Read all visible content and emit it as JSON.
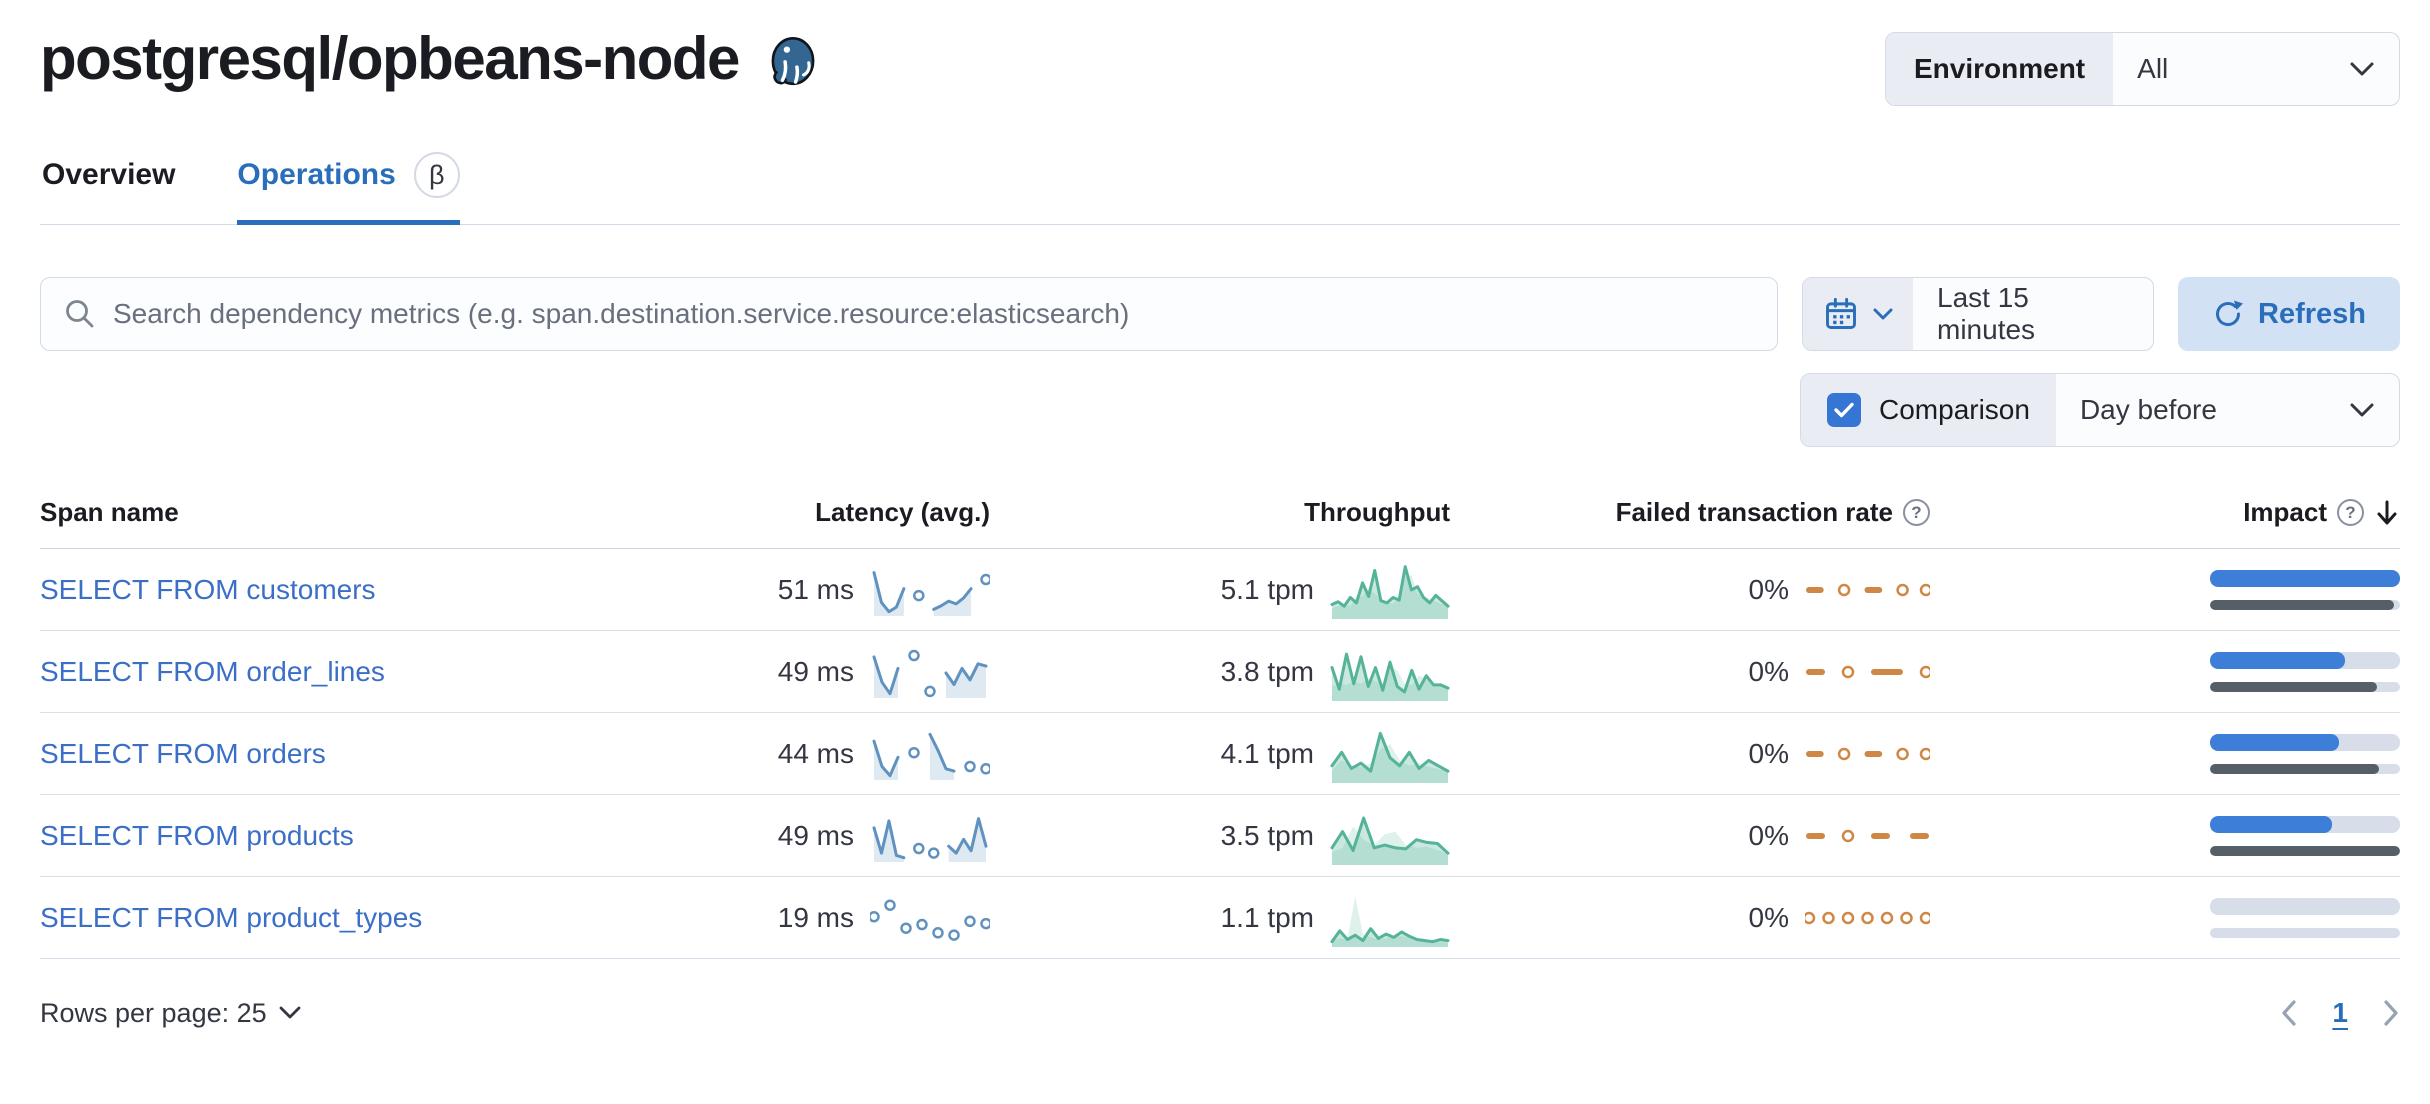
{
  "header": {
    "title": "postgresql/opbeans-node",
    "logo": "postgresql-elephant"
  },
  "environment": {
    "label": "Environment",
    "value": "All"
  },
  "tabs": {
    "overview": "Overview",
    "operations": "Operations",
    "beta": "β"
  },
  "toolbar": {
    "search_placeholder": "Search dependency metrics (e.g. span.destination.service.resource:elasticsearch)",
    "time_range": "Last 15 minutes",
    "refresh_label": "Refresh",
    "comparison_label": "Comparison",
    "comparison_checked": true,
    "comparison_value": "Day before"
  },
  "table": {
    "headers": {
      "span_name": "Span name",
      "latency": "Latency (avg.)",
      "throughput": "Throughput",
      "failed_rate": "Failed transaction rate",
      "impact": "Impact"
    },
    "rows": [
      {
        "span_name": "SELECT FROM customers",
        "latency": "51 ms",
        "throughput": "5.1 tpm",
        "failed_rate": "0%",
        "latency_spark": [
          90,
          25,
          5,
          15,
          55,
          null,
          40,
          null,
          10,
          18,
          28,
          22,
          35,
          55,
          null,
          75
        ],
        "throughput_spark": {
          "current": [
            25,
            30,
            22,
            38,
            28,
            65,
            40,
            88,
            32,
            28,
            38,
            33,
            95,
            52,
            58,
            38,
            28,
            42,
            32,
            22
          ],
          "previous": [
            18,
            22,
            26,
            22,
            40,
            40,
            55,
            45,
            36,
            30,
            26,
            40,
            75,
            80,
            45,
            40,
            36,
            30,
            26,
            24
          ]
        },
        "failed_spark": [
          0,
          0,
          null,
          0,
          null,
          0,
          0,
          null,
          0,
          null,
          0
        ],
        "impact": {
          "current": 100,
          "previous": 97
        }
      },
      {
        "span_name": "SELECT FROM order_lines",
        "latency": "49 ms",
        "throughput": "3.8 tpm",
        "failed_rate": "0%",
        "latency_spark": [
          85,
          30,
          5,
          60,
          null,
          88,
          null,
          10,
          null,
          50,
          25,
          60,
          35,
          70,
          65
        ],
        "throughput_spark": {
          "current": [
            60,
            20,
            85,
            30,
            80,
            25,
            60,
            18,
            70,
            25,
            15,
            55,
            20,
            45,
            28,
            28,
            22
          ],
          "previous": [
            25,
            30,
            28,
            35,
            30,
            40,
            35,
            30,
            60,
            55,
            30,
            28,
            45,
            40,
            30,
            25,
            22
          ]
        },
        "failed_spark": [
          0,
          0,
          null,
          0,
          null,
          0,
          0,
          0,
          null,
          0
        ],
        "impact": {
          "current": 71,
          "previous": 88
        }
      },
      {
        "span_name": "SELECT FROM orders",
        "latency": "44 ms",
        "throughput": "4.1 tpm",
        "failed_rate": "0%",
        "latency_spark": [
          80,
          25,
          5,
          45,
          null,
          55,
          null,
          95,
          60,
          20,
          15,
          null,
          25,
          null,
          20
        ],
        "throughput_spark": {
          "current": [
            30,
            55,
            25,
            35,
            20,
            90,
            45,
            30,
            55,
            25,
            40,
            30,
            20
          ],
          "previous": [
            22,
            40,
            30,
            28,
            35,
            60,
            70,
            40,
            30,
            35,
            28,
            24,
            20
          ]
        },
        "failed_spark": [
          0,
          0,
          null,
          0,
          null,
          0,
          0,
          null,
          0,
          null,
          0
        ],
        "impact": {
          "current": 68,
          "previous": 89
        }
      },
      {
        "span_name": "SELECT FROM products",
        "latency": "49 ms",
        "throughput": "3.5 tpm",
        "failed_rate": "0%",
        "latency_spark": [
          70,
          15,
          85,
          10,
          5,
          null,
          25,
          null,
          15,
          null,
          30,
          15,
          45,
          20,
          90,
          30
        ],
        "throughput_spark": {
          "current": [
            30,
            60,
            25,
            85,
            30,
            35,
            30,
            28,
            45,
            40,
            38,
            20
          ],
          "previous": [
            22,
            30,
            70,
            45,
            35,
            55,
            60,
            35,
            30,
            32,
            26,
            18
          ]
        },
        "failed_spark": [
          0,
          0,
          null,
          0,
          null,
          0,
          0,
          null,
          0,
          0
        ],
        "impact": {
          "current": 64,
          "previous": 100
        }
      },
      {
        "span_name": "SELECT FROM product_types",
        "latency": "19 ms",
        "throughput": "1.1 tpm",
        "failed_rate": "0%",
        "latency_spark": [
          55,
          null,
          80,
          null,
          30,
          null,
          38,
          null,
          20,
          null,
          15,
          null,
          45,
          null,
          40
        ],
        "throughput_spark": {
          "current": [
            8,
            28,
            12,
            20,
            10,
            32,
            14,
            22,
            16,
            26,
            18,
            12,
            10,
            8,
            12,
            10
          ],
          "previous": [
            10,
            14,
            12,
            92,
            22,
            16,
            12,
            14,
            18,
            18,
            16,
            12,
            10,
            8,
            8,
            6
          ]
        },
        "failed_spark": [
          0,
          null,
          0,
          null,
          0,
          null,
          0,
          null,
          0,
          null,
          0,
          null,
          0
        ],
        "impact": {
          "current": 0,
          "previous": 0
        }
      }
    ]
  },
  "footer": {
    "rows_per_page": "Rows per page: 25",
    "current_page": "1"
  },
  "colors": {
    "primary_blue": "#2a6ebb",
    "link_blue": "#3b6fc7",
    "impact_blue": "#3d7fd8",
    "impact_gray": "#565e68",
    "spark_blue": "#6092C0",
    "spark_green": "#54B399",
    "spark_orange": "#CE8745",
    "checkbox_blue": "#3575d3"
  }
}
